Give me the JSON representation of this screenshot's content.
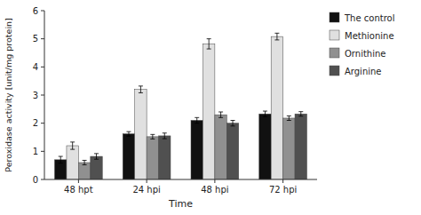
{
  "chart_data": {
    "type": "bar",
    "categories": [
      "48 hpt",
      "24 hpi",
      "48 hpi",
      "72 hpi"
    ],
    "series": [
      {
        "name": "The control",
        "color": "#111111",
        "values": [
          0.7,
          1.62,
          2.1,
          2.33
        ],
        "errors": [
          0.12,
          0.08,
          0.1,
          0.1
        ]
      },
      {
        "name": "Methionine",
        "color": "#e0e0e0",
        "values": [
          1.2,
          3.2,
          4.82,
          5.08
        ],
        "errors": [
          0.13,
          0.12,
          0.18,
          0.12
        ]
      },
      {
        "name": "Ornithine",
        "color": "#909090",
        "values": [
          0.6,
          1.52,
          2.3,
          2.18
        ],
        "errors": [
          0.08,
          0.08,
          0.1,
          0.08
        ]
      },
      {
        "name": "Arginine",
        "color": "#505050",
        "values": [
          0.82,
          1.55,
          2.0,
          2.33
        ],
        "errors": [
          0.1,
          0.1,
          0.1,
          0.08
        ]
      }
    ],
    "xlabel": "Time",
    "ylabel": "Peroxidase activity [unit/mg protein]",
    "ylim": [
      0,
      6
    ],
    "yticks": [
      0,
      1,
      2,
      3,
      4,
      5,
      6
    ],
    "grid": false,
    "legend": "right"
  }
}
